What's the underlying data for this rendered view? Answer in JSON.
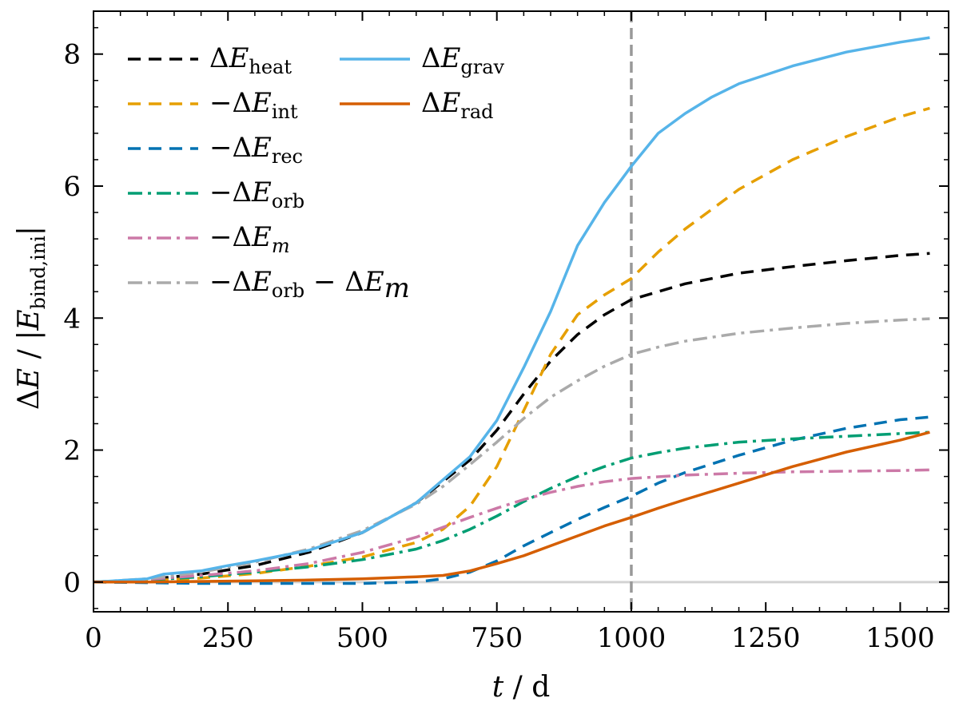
{
  "chart_data": {
    "type": "line",
    "xlabel": "t / d",
    "ylabel": "ΔE / |E_bind,ini|",
    "xlim": [
      0,
      1590
    ],
    "ylim": [
      -0.45,
      8.65
    ],
    "xticks": [
      0,
      250,
      500,
      750,
      1000,
      1250,
      1500
    ],
    "yticks": [
      0,
      2,
      4,
      6,
      8
    ],
    "grid": false,
    "legend_placement": "top-left",
    "vertical_marker_x": 1000,
    "zero_line_y": 0,
    "series": [
      {
        "name": "ΔE_heat",
        "style": "dashed",
        "color": "#000000",
        "x": [
          0,
          100,
          200,
          300,
          400,
          500,
          600,
          700,
          750,
          800,
          850,
          900,
          950,
          1000,
          1100,
          1200,
          1300,
          1400,
          1500,
          1555
        ],
        "y": [
          0,
          0.04,
          0.12,
          0.25,
          0.45,
          0.75,
          1.2,
          1.85,
          2.3,
          2.85,
          3.35,
          3.75,
          4.05,
          4.28,
          4.52,
          4.68,
          4.78,
          4.87,
          4.95,
          4.98
        ]
      },
      {
        "name": "−ΔE_int",
        "style": "dashed",
        "color": "#E69F00",
        "x": [
          0,
          100,
          200,
          300,
          400,
          500,
          600,
          650,
          700,
          750,
          800,
          850,
          900,
          950,
          1000,
          1050,
          1100,
          1200,
          1300,
          1400,
          1500,
          1555
        ],
        "y": [
          0,
          0.02,
          0.06,
          0.13,
          0.24,
          0.38,
          0.6,
          0.8,
          1.15,
          1.75,
          2.6,
          3.45,
          4.05,
          4.35,
          4.6,
          5.0,
          5.35,
          5.95,
          6.4,
          6.75,
          7.05,
          7.18
        ]
      },
      {
        "name": "−ΔE_rec",
        "style": "dashed",
        "color": "#0072B2",
        "x": [
          0,
          100,
          200,
          300,
          400,
          500,
          600,
          650,
          700,
          750,
          800,
          850,
          900,
          950,
          1000,
          1050,
          1100,
          1200,
          1300,
          1400,
          1500,
          1555
        ],
        "y": [
          0,
          -0.01,
          -0.02,
          -0.02,
          -0.02,
          -0.02,
          0,
          0.05,
          0.15,
          0.32,
          0.55,
          0.75,
          0.95,
          1.13,
          1.3,
          1.5,
          1.66,
          1.92,
          2.15,
          2.33,
          2.46,
          2.5
        ]
      },
      {
        "name": "−ΔE_orb",
        "style": "dashdot",
        "color": "#009E73",
        "x": [
          0,
          100,
          200,
          300,
          400,
          500,
          600,
          650,
          700,
          750,
          800,
          850,
          900,
          950,
          1000,
          1050,
          1100,
          1200,
          1300,
          1400,
          1500,
          1555
        ],
        "y": [
          0,
          0.03,
          0.08,
          0.15,
          0.23,
          0.34,
          0.5,
          0.63,
          0.8,
          1.0,
          1.22,
          1.42,
          1.6,
          1.75,
          1.88,
          1.96,
          2.03,
          2.12,
          2.17,
          2.21,
          2.25,
          2.27
        ]
      },
      {
        "name": "−ΔE_m",
        "style": "dashdot",
        "color": "#CC79A7",
        "x": [
          0,
          100,
          200,
          300,
          400,
          500,
          600,
          650,
          700,
          750,
          800,
          850,
          900,
          950,
          1000,
          1100,
          1200,
          1300,
          1400,
          1500,
          1555
        ],
        "y": [
          0,
          0.04,
          0.1,
          0.17,
          0.28,
          0.45,
          0.68,
          0.83,
          0.98,
          1.12,
          1.25,
          1.36,
          1.45,
          1.52,
          1.57,
          1.62,
          1.65,
          1.67,
          1.68,
          1.69,
          1.7
        ]
      },
      {
        "name": "−ΔE_orb − ΔE_m",
        "style": "dashdot",
        "color": "#AAAAAA",
        "x": [
          0,
          100,
          200,
          300,
          400,
          500,
          600,
          650,
          700,
          750,
          800,
          850,
          900,
          950,
          1000,
          1050,
          1100,
          1200,
          1300,
          1400,
          1500,
          1555
        ],
        "y": [
          0,
          0.05,
          0.15,
          0.3,
          0.5,
          0.78,
          1.18,
          1.45,
          1.78,
          2.12,
          2.48,
          2.8,
          3.05,
          3.27,
          3.45,
          3.56,
          3.65,
          3.77,
          3.85,
          3.92,
          3.97,
          3.99
        ]
      },
      {
        "name": "ΔE_grav",
        "style": "solid",
        "color": "#56B4E9",
        "x": [
          0,
          100,
          130,
          200,
          250,
          300,
          400,
          500,
          600,
          650,
          700,
          750,
          800,
          850,
          880,
          900,
          950,
          1000,
          1050,
          1100,
          1150,
          1200,
          1300,
          1400,
          1500,
          1555
        ],
        "y": [
          0,
          0.05,
          0.12,
          0.17,
          0.25,
          0.32,
          0.48,
          0.75,
          1.2,
          1.55,
          1.9,
          2.45,
          3.25,
          4.1,
          4.7,
          5.1,
          5.75,
          6.3,
          6.8,
          7.1,
          7.35,
          7.55,
          7.82,
          8.03,
          8.18,
          8.25
        ]
      },
      {
        "name": "ΔE_rad",
        "style": "solid",
        "color": "#D55E00",
        "x": [
          0,
          100,
          200,
          300,
          400,
          500,
          600,
          650,
          700,
          750,
          800,
          850,
          900,
          950,
          1000,
          1050,
          1100,
          1200,
          1300,
          1400,
          1500,
          1555
        ],
        "y": [
          0,
          0.0,
          0.01,
          0.02,
          0.03,
          0.05,
          0.08,
          0.1,
          0.17,
          0.28,
          0.4,
          0.55,
          0.7,
          0.85,
          0.98,
          1.12,
          1.25,
          1.5,
          1.75,
          1.97,
          2.15,
          2.27
        ]
      }
    ],
    "legend": {
      "col1": [
        {
          "prefix": "ΔE",
          "sub": "heat",
          "suffix": "",
          "series_index": 0
        },
        {
          "prefix": "−ΔE",
          "sub": "int",
          "suffix": "",
          "series_index": 1
        },
        {
          "prefix": "−ΔE",
          "sub": "rec",
          "suffix": "",
          "series_index": 2
        },
        {
          "prefix": "−ΔE",
          "sub": "orb",
          "suffix": "",
          "series_index": 3
        },
        {
          "prefix": "−ΔE",
          "sub": "m",
          "suffix": "",
          "series_index": 4,
          "italic_sub": true
        },
        {
          "prefix": "−ΔE",
          "sub": "orb",
          "suffix": " − ΔE",
          "suffix_sub": "m",
          "series_index": 5
        }
      ],
      "col2": [
        {
          "prefix": "ΔE",
          "sub": "grav",
          "suffix": "",
          "series_index": 6
        },
        {
          "prefix": "ΔE",
          "sub": "rad",
          "suffix": "",
          "series_index": 7
        }
      ]
    },
    "colors": {
      "axis": "#000000",
      "marker_line": "#999999",
      "zero_line": "#D3D3D3"
    }
  }
}
